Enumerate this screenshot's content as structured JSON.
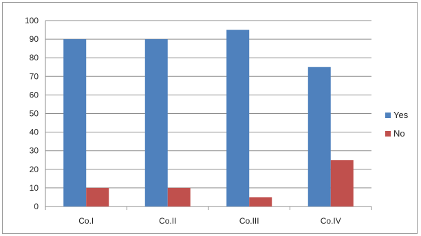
{
  "chart_data": {
    "type": "bar",
    "categories": [
      "Co.I",
      "Co.II",
      "Co.III",
      "Co.IV"
    ],
    "series": [
      {
        "name": "Yes",
        "values": [
          90,
          90,
          95,
          75
        ],
        "color": "#4f81bd"
      },
      {
        "name": "No",
        "values": [
          10,
          10,
          5,
          25
        ],
        "color": "#c0504d"
      }
    ],
    "title": "",
    "xlabel": "",
    "ylabel": "",
    "ylim": [
      0,
      100
    ],
    "yticks": [
      0,
      10,
      20,
      30,
      40,
      50,
      60,
      70,
      80,
      90,
      100
    ],
    "grid": true,
    "legend": "right"
  }
}
